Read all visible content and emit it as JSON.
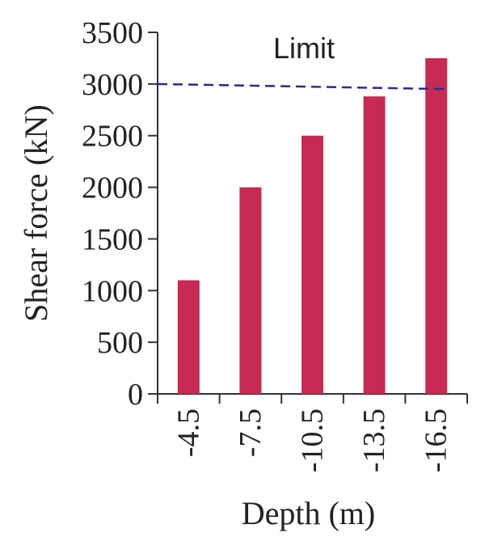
{
  "chart_data": {
    "type": "bar",
    "categories": [
      "-4.5",
      "-7.5",
      "-10.5",
      "-13.5",
      "-16.5"
    ],
    "values": [
      1100,
      2000,
      2500,
      2880,
      3250
    ],
    "xlabel": "Depth (m)",
    "ylabel": "Shear force (kN)",
    "ylim": [
      0,
      3500
    ],
    "yticks": [
      0,
      500,
      1000,
      1500,
      2000,
      2500,
      3000,
      3500
    ],
    "limit_line": {
      "label": "Limit",
      "values": [
        3000,
        2950
      ],
      "style": "dashed"
    },
    "grid": false,
    "legend": "none"
  },
  "colors": {
    "bar": "#c72a52",
    "limit_line": "#2d2a8c",
    "axis": "#333333",
    "text": "#222222"
  }
}
